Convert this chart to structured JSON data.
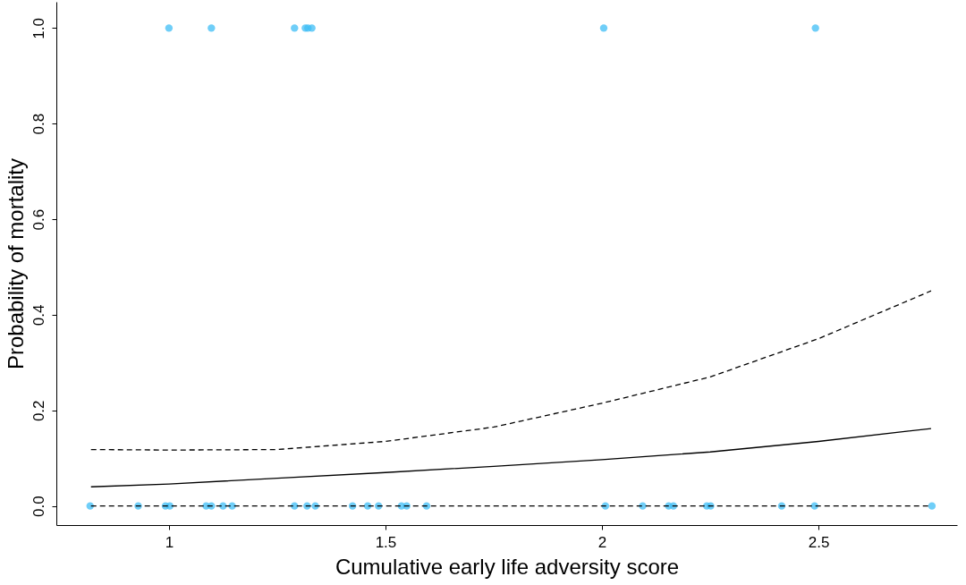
{
  "chart_data": {
    "type": "scatter",
    "xlabel": "Cumulative early life adversity score",
    "ylabel": "Probability of mortality",
    "xlim": [
      0.74,
      2.82
    ],
    "xticks": [
      {
        "value": 1,
        "label": "1"
      },
      1.5,
      {
        "value": 2,
        "label": "2"
      },
      2.5
    ],
    "ylim": [
      -0.04,
      1.055
    ],
    "yticks": [
      {
        "value": 0,
        "label": "0.0"
      },
      0.2,
      0.4,
      0.6,
      0.8,
      {
        "value": 1,
        "label": "1.0"
      }
    ],
    "grid": false,
    "series": [
      {
        "marker": "circle",
        "color": "#3fbdf5",
        "x": [
          0.818,
          0.929,
          0.992,
          1.002,
          1.086,
          1.098,
          1.125,
          1.146,
          1.29,
          1.319,
          1.338,
          1.424,
          1.459,
          1.484,
          1.537,
          1.549,
          1.595,
          2.008,
          2.094,
          2.154,
          2.165,
          2.242,
          2.251,
          2.415,
          2.491,
          2.762,
          1.0,
          1.098,
          1.29,
          1.315,
          1.321,
          1.33,
          2.004,
          2.493
        ],
        "values": [
          0,
          0,
          0,
          0,
          0,
          0,
          0,
          0,
          0,
          0,
          0,
          0,
          0,
          0,
          0,
          0,
          0,
          0,
          0,
          0,
          0,
          0,
          0,
          0,
          0,
          0,
          1,
          1,
          1,
          1,
          1,
          1,
          1,
          1
        ]
      },
      {
        "type": "line",
        "line_style": "solid",
        "color": "#000000",
        "x": [
          0.82,
          1.0,
          1.25,
          1.5,
          1.75,
          2.0,
          2.25,
          2.5,
          2.76
        ],
        "values": [
          0.04,
          0.046,
          0.058,
          0.07,
          0.083,
          0.097,
          0.113,
          0.135,
          0.162
        ]
      },
      {
        "type": "line",
        "line_style": "dashed",
        "color": "#000000",
        "x": [
          0.82,
          1.0,
          1.25,
          1.5,
          1.75,
          2.0,
          2.25,
          2.5,
          2.76
        ],
        "values": [
          0.118,
          0.117,
          0.118,
          0.135,
          0.165,
          0.215,
          0.27,
          0.35,
          0.45
        ]
      },
      {
        "type": "line",
        "line_style": "dashed",
        "color": "#000000",
        "x": [
          0.82,
          2.76
        ],
        "values": [
          0,
          0
        ]
      }
    ]
  }
}
